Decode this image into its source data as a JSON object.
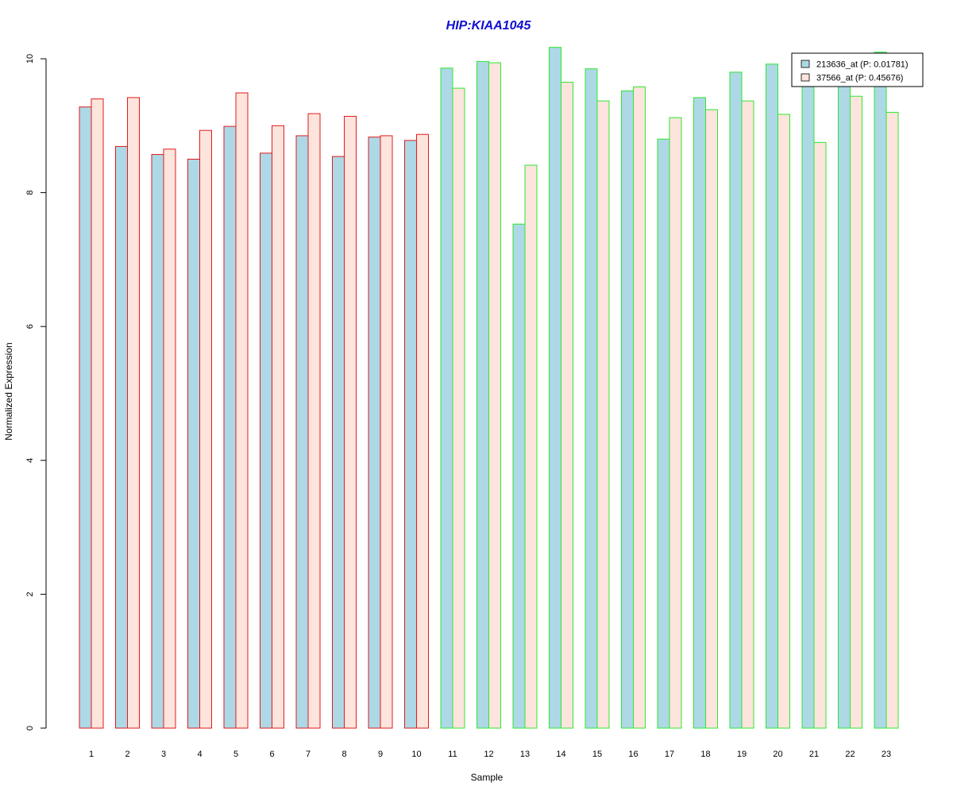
{
  "chart_data": {
    "type": "bar",
    "title": "HIP:KIAA1045",
    "xlabel": "Sample",
    "ylabel": "Normalized Expression",
    "ylim": [
      0,
      10
    ],
    "yticks": [
      0,
      2,
      4,
      6,
      8,
      10
    ],
    "categories": [
      "1",
      "2",
      "3",
      "4",
      "5",
      "6",
      "7",
      "8",
      "9",
      "10",
      "11",
      "12",
      "13",
      "14",
      "15",
      "16",
      "17",
      "18",
      "19",
      "20",
      "21",
      "22",
      "23"
    ],
    "series": [
      {
        "name": "213636_at (P: 0.01781)",
        "fill": "#add8e6",
        "values": [
          9.28,
          8.69,
          8.57,
          8.5,
          8.99,
          8.59,
          8.85,
          8.54,
          8.83,
          8.78,
          9.86,
          9.96,
          7.53,
          10.17,
          9.85,
          9.52,
          8.8,
          9.42,
          9.8,
          9.92,
          9.62,
          9.63,
          10.1
        ]
      },
      {
        "name": "37566_at (P: 0.45676)",
        "fill": "#fde4dc",
        "values": [
          9.4,
          9.42,
          8.65,
          8.93,
          9.49,
          9.0,
          9.18,
          9.14,
          8.85,
          8.87,
          9.56,
          9.94,
          8.41,
          9.65,
          9.37,
          9.58,
          9.12,
          9.24,
          9.37,
          9.17,
          8.75,
          9.44,
          9.2
        ]
      }
    ],
    "group_colors": [
      "#e31a1c",
      "#e31a1c",
      "#e31a1c",
      "#e31a1c",
      "#e31a1c",
      "#e31a1c",
      "#e31a1c",
      "#e31a1c",
      "#e31a1c",
      "#e31a1c",
      "#2ee82e",
      "#2ee82e",
      "#2ee82e",
      "#2ee82e",
      "#2ee82e",
      "#2ee82e",
      "#2ee82e",
      "#2ee82e",
      "#2ee82e",
      "#2ee82e",
      "#2ee82e",
      "#2ee82e",
      "#2ee82e"
    ],
    "title_color": "#1010d0",
    "legend_position": "top-right",
    "grid": false
  }
}
